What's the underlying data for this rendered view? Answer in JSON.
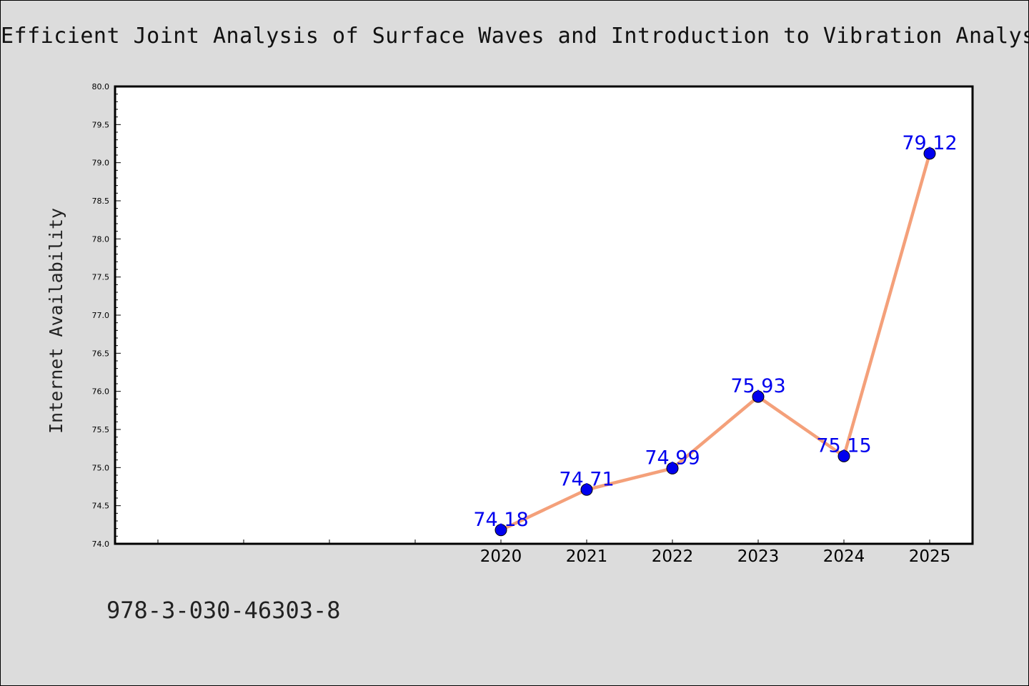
{
  "title": "Efficient Joint Analysis of Surface Waves and Introduction to Vibration Analysis",
  "footer_text": "978-3-030-46303-8",
  "colors": {
    "background": "#dcdcdc",
    "plot_background": "#ffffff",
    "line": "#f4a07a",
    "marker": "#0000ee",
    "data_label": "#0000ee"
  },
  "chart_data": {
    "type": "line",
    "title": "Efficient Joint Analysis of Surface Waves and Introduction to Vibration Analysis",
    "xlabel": "",
    "ylabel": "Internet Availability",
    "x": [
      "2020",
      "2021",
      "2022",
      "2023",
      "2024",
      "2025"
    ],
    "series": [
      {
        "values": [
          74.18,
          74.71,
          74.99,
          75.93,
          75.15,
          79.12
        ]
      }
    ],
    "data_labels": [
      "74.18",
      "74.71",
      "74.99",
      "75.93",
      "75.15",
      "79.12"
    ],
    "ylim": [
      74.0,
      80.0
    ],
    "y_ticks": [
      "74.0",
      "74.5",
      "75.0",
      "75.5",
      "76.0",
      "76.5",
      "77.0",
      "77.5",
      "78.0",
      "78.5",
      "79.0",
      "79.5",
      "80.0"
    ],
    "grid": false,
    "legend": "none"
  }
}
